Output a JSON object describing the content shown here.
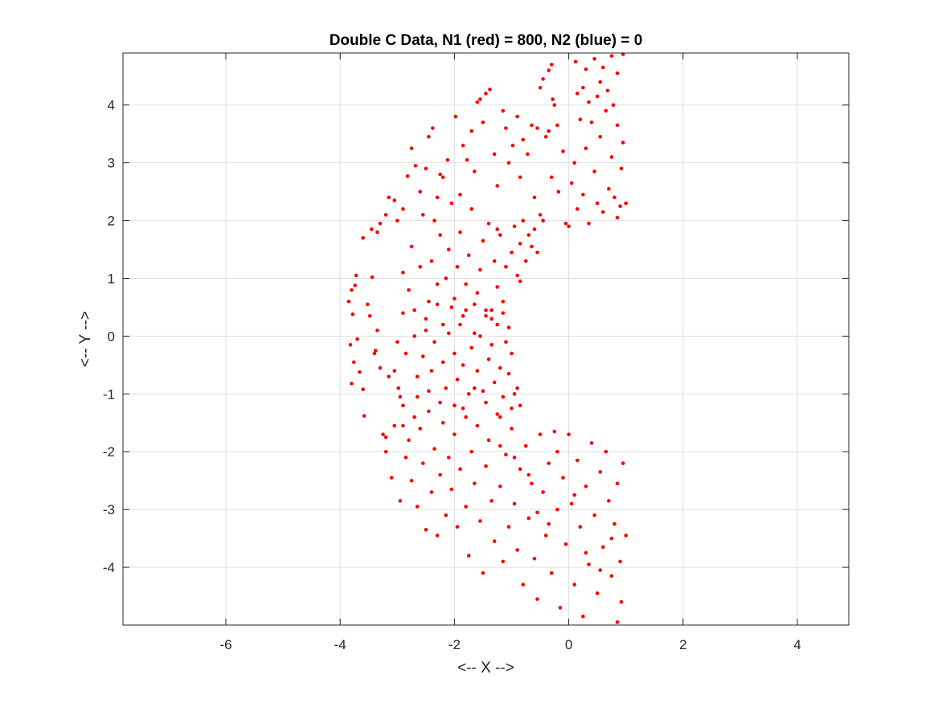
{
  "chart_data": {
    "type": "scatter",
    "title": "Double C Data, N1 (red) = 800, N2 (blue) = 0",
    "xlabel": "<-- X -->",
    "ylabel": "<-- Y -->",
    "xlim": [
      -7.8,
      4.9
    ],
    "ylim": [
      -5.0,
      4.9
    ],
    "xticks": [
      -6,
      -4,
      -2,
      0,
      2,
      4
    ],
    "yticks": [
      -4,
      -3,
      -2,
      -1,
      0,
      1,
      2,
      3,
      4
    ],
    "grid": true,
    "series": [
      {
        "color": "#ff0000",
        "points": [
          [
            -3.85,
            0.6
          ],
          [
            -3.8,
            0.8
          ],
          [
            -3.78,
            0.38
          ],
          [
            -3.74,
            0.88
          ],
          [
            -3.72,
            1.05
          ],
          [
            -3.82,
            -0.15
          ],
          [
            -3.76,
            -0.45
          ],
          [
            -3.7,
            -0.05
          ],
          [
            -3.66,
            -0.62
          ],
          [
            -3.8,
            -0.82
          ],
          [
            -3.6,
            -0.92
          ],
          [
            -3.58,
            -1.38
          ],
          [
            -3.52,
            0.55
          ],
          [
            -3.48,
            0.35
          ],
          [
            -3.44,
            1.02
          ],
          [
            -3.4,
            -0.3
          ],
          [
            -3.38,
            -0.25
          ],
          [
            -3.35,
            0.1
          ],
          [
            -3.3,
            -0.55
          ],
          [
            -3.25,
            -1.7
          ],
          [
            -3.2,
            -1.75
          ],
          [
            -3.15,
            -0.7
          ],
          [
            -3.05,
            -0.6
          ],
          [
            -2.98,
            -0.9
          ],
          [
            -2.95,
            -1.05
          ],
          [
            -3.6,
            1.7
          ],
          [
            -3.45,
            1.85
          ],
          [
            -3.35,
            1.8
          ],
          [
            -3.3,
            1.95
          ],
          [
            -3.2,
            2.1
          ],
          [
            -3.15,
            2.4
          ],
          [
            -3.05,
            2.35
          ],
          [
            -3.0,
            2.0
          ],
          [
            -2.9,
            2.2
          ],
          [
            -2.82,
            2.77
          ],
          [
            -2.75,
            3.25
          ],
          [
            -2.68,
            2.95
          ],
          [
            -2.6,
            2.5
          ],
          [
            -2.55,
            2.1
          ],
          [
            -2.5,
            2.9
          ],
          [
            -2.45,
            3.45
          ],
          [
            -2.38,
            3.6
          ],
          [
            -2.35,
            2.0
          ],
          [
            -2.3,
            2.4
          ],
          [
            -2.25,
            2.8
          ],
          [
            -2.2,
            2.75
          ],
          [
            -2.12,
            3.05
          ],
          [
            -2.05,
            2.3
          ],
          [
            -1.98,
            3.8
          ],
          [
            -1.9,
            2.45
          ],
          [
            -1.85,
            3.3
          ],
          [
            -1.78,
            3.05
          ],
          [
            -1.7,
            3.55
          ],
          [
            -1.65,
            2.85
          ],
          [
            -1.6,
            4.05
          ],
          [
            -1.55,
            4.1
          ],
          [
            -1.5,
            3.7
          ],
          [
            -1.45,
            4.2
          ],
          [
            -1.38,
            4.27
          ],
          [
            -1.3,
            3.15
          ],
          [
            -1.25,
            2.6
          ],
          [
            -1.15,
            3.9
          ],
          [
            -1.1,
            3.6
          ],
          [
            -1.05,
            3.0
          ],
          [
            -0.98,
            3.3
          ],
          [
            -0.9,
            3.8
          ],
          [
            -0.85,
            2.75
          ],
          [
            -0.8,
            3.4
          ],
          [
            -0.72,
            3.15
          ],
          [
            -0.65,
            3.65
          ],
          [
            -0.6,
            2.4
          ],
          [
            -0.55,
            3.6
          ],
          [
            -0.5,
            2.1
          ],
          [
            -0.45,
            2.0
          ],
          [
            -0.4,
            3.45
          ],
          [
            -0.35,
            3.55
          ],
          [
            -0.3,
            2.75
          ],
          [
            -0.25,
            4.0
          ],
          [
            -0.2,
            3.65
          ],
          [
            -0.18,
            2.5
          ],
          [
            -0.1,
            3.2
          ],
          [
            -0.05,
            1.95
          ],
          [
            0.0,
            1.9
          ],
          [
            0.05,
            2.65
          ],
          [
            0.1,
            3.0
          ],
          [
            0.15,
            2.2
          ],
          [
            0.2,
            3.75
          ],
          [
            0.25,
            2.45
          ],
          [
            0.3,
            3.25
          ],
          [
            0.35,
            1.95
          ],
          [
            0.4,
            3.7
          ],
          [
            0.45,
            2.85
          ],
          [
            0.5,
            2.3
          ],
          [
            0.55,
            3.45
          ],
          [
            0.6,
            2.15
          ],
          [
            0.65,
            3.9
          ],
          [
            0.7,
            2.55
          ],
          [
            0.75,
            3.1
          ],
          [
            0.8,
            2.4
          ],
          [
            0.85,
            3.65
          ],
          [
            0.9,
            2.25
          ],
          [
            0.95,
            3.35
          ],
          [
            1.0,
            2.3
          ],
          [
            0.92,
            2.9
          ],
          [
            0.85,
            2.05
          ],
          [
            -0.5,
            4.3
          ],
          [
            -0.45,
            4.45
          ],
          [
            -0.35,
            4.6
          ],
          [
            -0.3,
            4.7
          ],
          [
            -0.28,
            4.1
          ],
          [
            0.12,
            4.75
          ],
          [
            0.15,
            4.2
          ],
          [
            0.25,
            4.3
          ],
          [
            0.3,
            4.62
          ],
          [
            0.45,
            4.8
          ],
          [
            0.55,
            4.4
          ],
          [
            0.6,
            4.65
          ],
          [
            0.75,
            4.85
          ],
          [
            0.85,
            4.55
          ],
          [
            0.95,
            4.88
          ],
          [
            0.35,
            4.05
          ],
          [
            0.5,
            4.15
          ],
          [
            0.68,
            4.25
          ],
          [
            0.78,
            4.0
          ],
          [
            -2.9,
            1.1
          ],
          [
            -2.8,
            0.8
          ],
          [
            -2.75,
            1.55
          ],
          [
            -2.7,
            0.45
          ],
          [
            -2.6,
            1.2
          ],
          [
            -2.5,
            0.1
          ],
          [
            -2.45,
            0.6
          ],
          [
            -2.4,
            1.3
          ],
          [
            -2.3,
            0.9
          ],
          [
            -2.25,
            1.75
          ],
          [
            -2.2,
            0.2
          ],
          [
            -2.15,
            1.0
          ],
          [
            -2.1,
            1.5
          ],
          [
            -2.0,
            0.65
          ],
          [
            -1.95,
            1.2
          ],
          [
            -1.9,
            1.8
          ],
          [
            -1.85,
            0.35
          ],
          [
            -1.8,
            0.9
          ],
          [
            -1.75,
            1.4
          ],
          [
            -1.7,
            2.2
          ],
          [
            -1.65,
            0.05
          ],
          [
            -1.6,
            0.75
          ],
          [
            -1.55,
            1.15
          ],
          [
            -1.5,
            1.65
          ],
          [
            -1.45,
            0.45
          ],
          [
            -1.4,
            1.95
          ],
          [
            -1.35,
            0.3
          ],
          [
            -1.3,
            1.3
          ],
          [
            -1.25,
            0.85
          ],
          [
            -1.2,
            1.75
          ],
          [
            -1.15,
            0.6
          ],
          [
            -1.1,
            1.2
          ],
          [
            -1.05,
            0.15
          ],
          [
            -1.0,
            1.45
          ],
          [
            -0.95,
            1.9
          ],
          [
            -0.9,
            1.05
          ],
          [
            -0.85,
            1.6
          ],
          [
            -0.8,
            2.0
          ],
          [
            -0.75,
            1.3
          ],
          [
            -0.7,
            1.75
          ],
          [
            -0.65,
            1.55
          ],
          [
            -0.6,
            1.85
          ],
          [
            -0.55,
            1.45
          ],
          [
            -0.85,
            0.95
          ],
          [
            -1.25,
            1.85
          ],
          [
            -3.0,
            -0.1
          ],
          [
            -2.9,
            0.4
          ],
          [
            -2.85,
            -0.3
          ],
          [
            -2.7,
            0.0
          ],
          [
            -2.65,
            -0.7
          ],
          [
            -2.55,
            -0.35
          ],
          [
            -2.5,
            0.3
          ],
          [
            -2.4,
            -0.6
          ],
          [
            -2.35,
            -0.1
          ],
          [
            -2.3,
            0.55
          ],
          [
            -2.2,
            -0.45
          ],
          [
            -2.15,
            -0.9
          ],
          [
            -2.1,
            0.05
          ],
          [
            -2.05,
            0.5
          ],
          [
            -2.0,
            -0.3
          ],
          [
            -1.95,
            -0.75
          ],
          [
            -1.9,
            0.2
          ],
          [
            -1.85,
            -0.5
          ],
          [
            -1.8,
            0.45
          ],
          [
            -1.75,
            -1.0
          ],
          [
            -1.7,
            -0.2
          ],
          [
            -1.65,
            0.55
          ],
          [
            -1.6,
            -0.6
          ],
          [
            -1.55,
            0.0
          ],
          [
            -1.5,
            -0.95
          ],
          [
            -1.45,
            0.35
          ],
          [
            -1.4,
            -0.4
          ],
          [
            -1.35,
            -0.15
          ],
          [
            -1.3,
            -0.8
          ],
          [
            -1.25,
            0.2
          ],
          [
            -1.2,
            -0.55
          ],
          [
            -1.15,
            -1.05
          ],
          [
            -1.1,
            -0.1
          ],
          [
            -1.05,
            -0.65
          ],
          [
            -1.0,
            -0.3
          ],
          [
            -0.95,
            -1.0
          ],
          [
            -0.9,
            -0.9
          ],
          [
            -0.85,
            -1.2
          ],
          [
            -1.15,
            0.4
          ],
          [
            -1.35,
            0.45
          ],
          [
            -3.2,
            -2.0
          ],
          [
            -3.1,
            -2.45
          ],
          [
            -3.05,
            -1.55
          ],
          [
            -2.95,
            -2.85
          ],
          [
            -2.9,
            -1.2
          ],
          [
            -2.85,
            -2.1
          ],
          [
            -2.8,
            -1.8
          ],
          [
            -2.75,
            -2.5
          ],
          [
            -2.7,
            -1.4
          ],
          [
            -2.65,
            -2.95
          ],
          [
            -2.6,
            -1.6
          ],
          [
            -2.55,
            -2.2
          ],
          [
            -2.5,
            -3.35
          ],
          [
            -2.45,
            -1.3
          ],
          [
            -2.4,
            -2.7
          ],
          [
            -2.35,
            -1.95
          ],
          [
            -2.3,
            -3.45
          ],
          [
            -2.25,
            -2.4
          ],
          [
            -2.2,
            -1.5
          ],
          [
            -2.15,
            -3.1
          ],
          [
            -2.1,
            -2.1
          ],
          [
            -2.05,
            -2.65
          ],
          [
            -2.0,
            -1.7
          ],
          [
            -1.95,
            -3.3
          ],
          [
            -1.9,
            -2.3
          ],
          [
            -1.85,
            -1.25
          ],
          [
            -1.8,
            -2.95
          ],
          [
            -1.75,
            -3.8
          ],
          [
            -1.7,
            -2.0
          ],
          [
            -1.65,
            -2.55
          ],
          [
            -1.6,
            -1.55
          ],
          [
            -1.55,
            -3.2
          ],
          [
            -1.5,
            -4.1
          ],
          [
            -1.45,
            -2.25
          ],
          [
            -1.4,
            -1.8
          ],
          [
            -1.35,
            -2.85
          ],
          [
            -1.3,
            -3.55
          ],
          [
            -1.25,
            -1.35
          ],
          [
            -1.2,
            -2.6
          ],
          [
            -1.15,
            -3.9
          ],
          [
            -1.1,
            -2.05
          ],
          [
            -1.05,
            -3.3
          ],
          [
            -1.0,
            -1.6
          ],
          [
            -0.95,
            -2.9
          ],
          [
            -0.9,
            -3.7
          ],
          [
            -0.85,
            -2.3
          ],
          [
            -0.8,
            -4.3
          ],
          [
            -0.75,
            -1.9
          ],
          [
            -0.7,
            -3.15
          ],
          [
            -0.65,
            -2.55
          ],
          [
            -0.6,
            -3.85
          ],
          [
            -0.55,
            -4.55
          ],
          [
            -0.5,
            -1.7
          ],
          [
            -0.45,
            -2.7
          ],
          [
            -0.4,
            -3.45
          ],
          [
            -0.35,
            -2.2
          ],
          [
            -0.3,
            -4.1
          ],
          [
            -0.25,
            -1.65
          ],
          [
            -0.2,
            -3.0
          ],
          [
            -0.15,
            -4.7
          ],
          [
            -0.1,
            -2.45
          ],
          [
            -0.05,
            -3.6
          ],
          [
            0.0,
            -1.7
          ],
          [
            0.05,
            -2.9
          ],
          [
            0.1,
            -4.3
          ],
          [
            0.15,
            -2.15
          ],
          [
            0.2,
            -3.3
          ],
          [
            0.25,
            -4.85
          ],
          [
            0.3,
            -2.6
          ],
          [
            0.35,
            -3.95
          ],
          [
            0.4,
            -1.85
          ],
          [
            0.45,
            -3.1
          ],
          [
            0.5,
            -4.45
          ],
          [
            0.55,
            -2.35
          ],
          [
            0.6,
            -3.65
          ],
          [
            0.65,
            -2.0
          ],
          [
            0.7,
            -2.85
          ],
          [
            0.75,
            -4.15
          ],
          [
            0.8,
            -3.25
          ],
          [
            0.85,
            -2.55
          ],
          [
            0.9,
            -3.9
          ],
          [
            0.95,
            -2.2
          ],
          [
            1.0,
            -3.45
          ],
          [
            0.92,
            -4.6
          ],
          [
            0.85,
            -4.95
          ],
          [
            -1.2,
            -1.9
          ],
          [
            -0.95,
            -2.1
          ],
          [
            -0.7,
            -2.4
          ],
          [
            -0.55,
            -3.05
          ],
          [
            -0.35,
            -3.25
          ],
          [
            -0.2,
            -2.0
          ],
          [
            0.1,
            -2.75
          ],
          [
            0.3,
            -3.75
          ],
          [
            0.55,
            -4.05
          ],
          [
            0.75,
            -3.5
          ],
          [
            -1.65,
            -0.9
          ],
          [
            -1.45,
            -1.15
          ],
          [
            -1.2,
            -1.4
          ],
          [
            -1.0,
            -1.25
          ],
          [
            -2.45,
            -0.95
          ],
          [
            -2.25,
            -1.15
          ],
          [
            -2.0,
            -1.2
          ],
          [
            -1.8,
            -1.4
          ],
          [
            -2.65,
            -1.05
          ],
          [
            -2.9,
            -1.55
          ]
        ]
      }
    ]
  }
}
